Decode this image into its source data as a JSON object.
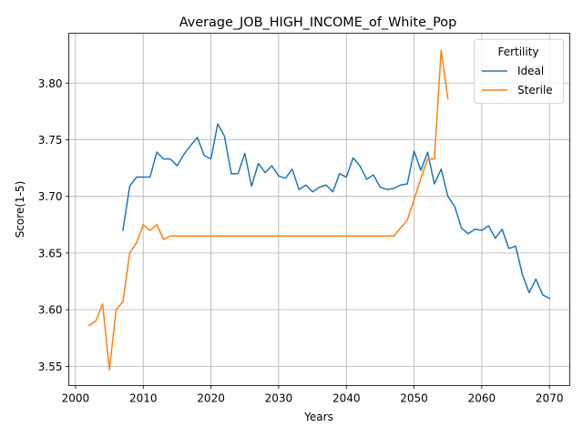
{
  "chart_data": {
    "type": "line",
    "title": "Average_JOB_HIGH_INCOME_of_White_Pop",
    "xlabel": "Years",
    "ylabel": "Score(1-5)",
    "xlim": [
      1999,
      2073
    ],
    "ylim": [
      3.533,
      3.844
    ],
    "xticks": [
      2000,
      2010,
      2020,
      2030,
      2040,
      2050,
      2060,
      2070
    ],
    "yticks": [
      3.55,
      3.6,
      3.65,
      3.7,
      3.75,
      3.8
    ],
    "xtick_labels": [
      "2000",
      "2010",
      "2020",
      "2030",
      "2040",
      "2050",
      "2060",
      "2070"
    ],
    "ytick_labels": [
      "3.55",
      "3.60",
      "3.65",
      "3.70",
      "3.75",
      "3.80"
    ],
    "grid": true,
    "legend": {
      "title": "Fertility",
      "position": "top-right"
    },
    "series": [
      {
        "name": "Ideal",
        "color": "#1f77b4",
        "x": [
          2007,
          2008,
          2009,
          2010,
          2011,
          2012,
          2013,
          2014,
          2015,
          2016,
          2017,
          2018,
          2019,
          2020,
          2021,
          2022,
          2023,
          2024,
          2025,
          2026,
          2027,
          2028,
          2029,
          2030,
          2031,
          2032,
          2033,
          2034,
          2035,
          2036,
          2037,
          2038,
          2039,
          2040,
          2041,
          2042,
          2043,
          2044,
          2045,
          2046,
          2047,
          2048,
          2049,
          2050,
          2051,
          2052,
          2053,
          2054,
          2055,
          2056,
          2057,
          2058,
          2059,
          2060,
          2061,
          2062,
          2063,
          2064,
          2065,
          2066,
          2067,
          2068,
          2069,
          2070
        ],
        "y": [
          3.67,
          3.709,
          3.717,
          3.717,
          3.717,
          3.739,
          3.733,
          3.733,
          3.727,
          3.737,
          3.745,
          3.752,
          3.736,
          3.733,
          3.764,
          3.753,
          3.72,
          3.72,
          3.738,
          3.709,
          3.729,
          3.721,
          3.727,
          3.718,
          3.716,
          3.724,
          3.706,
          3.71,
          3.704,
          3.708,
          3.71,
          3.704,
          3.72,
          3.717,
          3.734,
          3.727,
          3.715,
          3.719,
          3.708,
          3.706,
          3.707,
          3.71,
          3.711,
          3.74,
          3.723,
          3.739,
          3.711,
          3.724,
          3.7,
          3.691,
          3.672,
          3.667,
          3.671,
          3.67,
          3.674,
          3.663,
          3.671,
          3.654,
          3.656,
          3.631,
          3.615,
          3.627,
          3.613,
          3.61
        ]
      },
      {
        "name": "Sterile",
        "color": "#ff7f0e",
        "x": [
          2002,
          2003,
          2004,
          2005,
          2006,
          2007,
          2008,
          2009,
          2010,
          2011,
          2012,
          2013,
          2014,
          2015,
          2016,
          2017,
          2018,
          2019,
          2020,
          2021,
          2022,
          2023,
          2024,
          2025,
          2026,
          2027,
          2028,
          2029,
          2030,
          2031,
          2032,
          2033,
          2034,
          2035,
          2036,
          2037,
          2038,
          2039,
          2040,
          2041,
          2042,
          2043,
          2044,
          2045,
          2046,
          2047,
          2048,
          2049,
          2050,
          2051,
          2052,
          2053,
          2054,
          2055
        ],
        "y": [
          3.586,
          3.59,
          3.605,
          3.547,
          3.6,
          3.607,
          3.65,
          3.659,
          3.675,
          3.67,
          3.675,
          3.662,
          3.665,
          3.665,
          3.665,
          3.665,
          3.665,
          3.665,
          3.665,
          3.665,
          3.665,
          3.665,
          3.665,
          3.665,
          3.665,
          3.665,
          3.665,
          3.665,
          3.665,
          3.665,
          3.665,
          3.665,
          3.665,
          3.665,
          3.665,
          3.665,
          3.665,
          3.665,
          3.665,
          3.665,
          3.665,
          3.665,
          3.665,
          3.665,
          3.665,
          3.665,
          3.672,
          3.679,
          3.697,
          3.716,
          3.733,
          3.733,
          3.829,
          3.786
        ]
      }
    ]
  }
}
